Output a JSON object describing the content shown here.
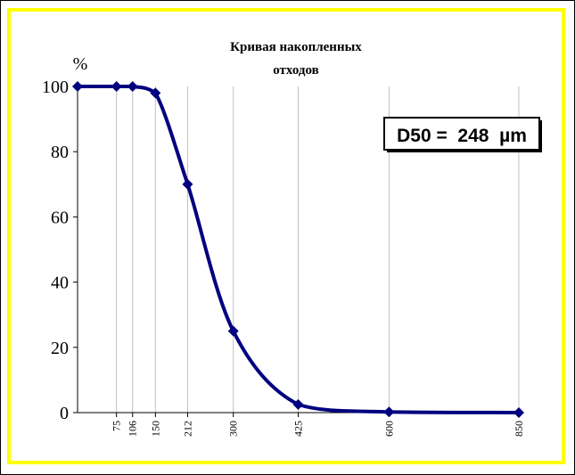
{
  "chart_data": {
    "type": "line",
    "title_lines": [
      "Кривая накопленных",
      "отходов"
    ],
    "ylabel": "%",
    "xlabel": "",
    "x_ticks": [
      75,
      106,
      150,
      212,
      300,
      425,
      600,
      850
    ],
    "x": [
      0,
      75,
      106,
      150,
      212,
      300,
      425,
      600,
      850
    ],
    "y": [
      100,
      100,
      100,
      98,
      70,
      25,
      2.5,
      0.2,
      0
    ],
    "xlim": [
      0,
      850
    ],
    "ylim": [
      0,
      100
    ],
    "y_ticks": [
      0,
      20,
      40,
      60,
      80,
      100
    ],
    "grid": "vertical",
    "annotation": "D50 =  248  µm",
    "colors": {
      "line": "#000080",
      "grid": "#c0c0c0",
      "border": "#ffff00"
    }
  }
}
